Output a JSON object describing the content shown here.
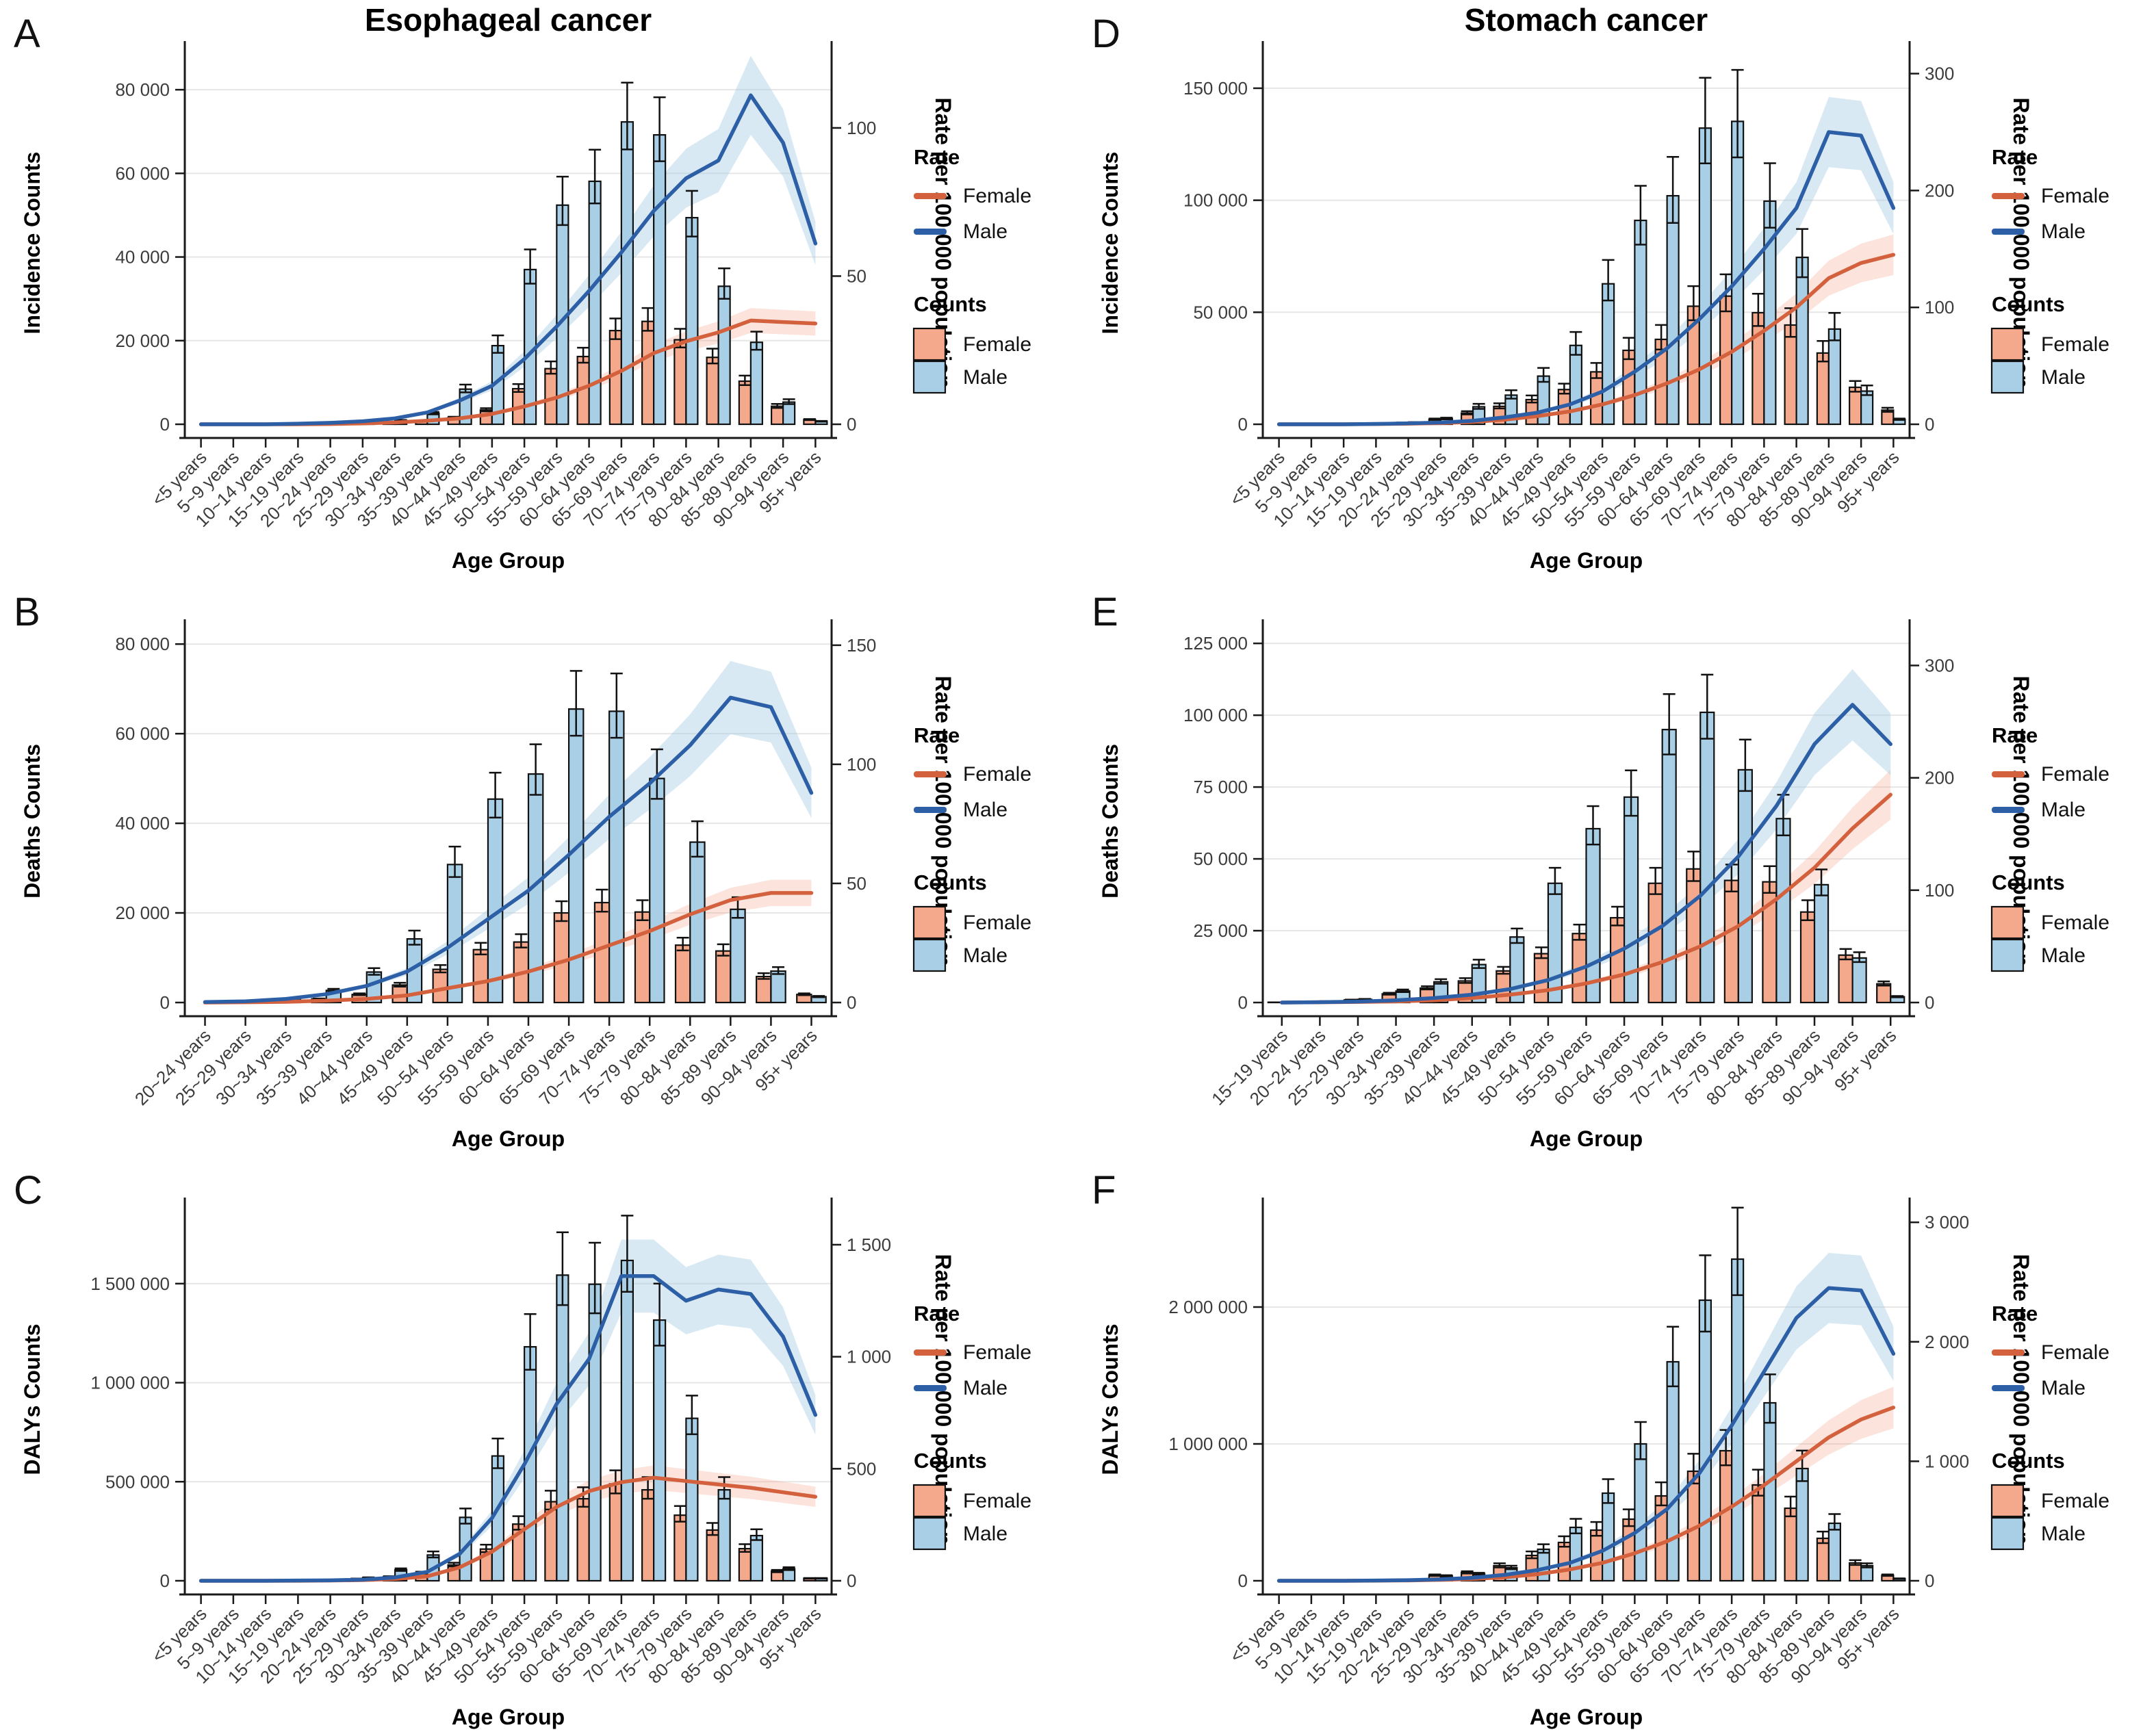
{
  "chart_data": {
    "type": "bar+line",
    "column_titles": [
      "Esophageal cancer",
      "Stomach cancer"
    ],
    "x_axis_title": "Age Group",
    "right_axis_title": "Rate per 100,000 population",
    "legend": {
      "rate_title": "Rate",
      "counts_title": "Counts",
      "female": "Female",
      "male": "Male"
    },
    "colors": {
      "female_bar": "#F5A98C",
      "male_bar": "#A9CFE6",
      "female_line": "#D4613E",
      "male_line": "#2D5FA6",
      "female_ribbon": "rgba(244,166,140,0.30)",
      "male_ribbon": "rgba(168,206,228,0.45)",
      "bar_stroke": "#111111",
      "grid": "#E6E6E6",
      "axis": "#1a1a1a"
    },
    "panels": [
      {
        "id": "A",
        "col": 0,
        "row": 0,
        "ylabel": "Incidence Counts",
        "categories": [
          "<5 years",
          "5~9 years",
          "10~14 years",
          "15~19 years",
          "20~24 years",
          "25~29 years",
          "30~34 years",
          "35~39 years",
          "40~44 years",
          "45~49 years",
          "50~54 years",
          "55~59 years",
          "60~64 years",
          "65~69 years",
          "70~74 years",
          "75~79 years",
          "80~84 years",
          "85~89 years",
          "90~94 years",
          "95+ years"
        ],
        "left_ticks": [
          {
            "v": 0,
            "l": "0"
          },
          {
            "v": 20000,
            "l": "20 000"
          },
          {
            "v": 40000,
            "l": "40 000"
          },
          {
            "v": 60000,
            "l": "60 000"
          },
          {
            "v": 80000,
            "l": "80 000"
          }
        ],
        "left_max": 90000,
        "right_ticks": [
          {
            "v": 0,
            "l": "0"
          },
          {
            "v": 50,
            "l": "50"
          },
          {
            "v": 100,
            "l": "100"
          }
        ],
        "right_max": 127,
        "counts_female": [
          0,
          0,
          0,
          0,
          50,
          150,
          300,
          700,
          1600,
          3400,
          8500,
          13300,
          16200,
          22400,
          24600,
          20200,
          16000,
          10300,
          4300,
          1100
        ],
        "counts_male": [
          0,
          0,
          0,
          50,
          150,
          300,
          900,
          2600,
          8400,
          18800,
          37000,
          52400,
          58100,
          72300,
          69200,
          49400,
          33000,
          19600,
          5300,
          700
        ],
        "rate_female": [
          0,
          0,
          0,
          0,
          0.1,
          0.3,
          0.6,
          1.2,
          2,
          3.5,
          6,
          9,
          13,
          18,
          24,
          28,
          31,
          35,
          34.5,
          34
        ],
        "rate_male": [
          0,
          0,
          0,
          0.2,
          0.5,
          1,
          2,
          4,
          8,
          13,
          22,
          33,
          45,
          58,
          72,
          83,
          89,
          111,
          95,
          61
        ],
        "ci_counts": 0.13,
        "ci_rate": 0.12
      },
      {
        "id": "B",
        "col": 0,
        "row": 1,
        "ylabel": "Deaths Counts",
        "categories": [
          "20~24 years",
          "25~29 years",
          "30~34 years",
          "35~39 years",
          "40~44 years",
          "45~49 years",
          "50~54 years",
          "55~59 years",
          "60~64 years",
          "65~69 years",
          "70~74 years",
          "75~79 years",
          "80~84 years",
          "85~89 years",
          "90~94 years",
          "95+ years"
        ],
        "left_ticks": [
          {
            "v": 0,
            "l": "0"
          },
          {
            "v": 20000,
            "l": "20 000"
          },
          {
            "v": 40000,
            "l": "40 000"
          },
          {
            "v": 60000,
            "l": "60 000"
          },
          {
            "v": 80000,
            "l": "80 000"
          }
        ],
        "left_max": 84000,
        "right_ticks": [
          {
            "v": 0,
            "l": "0"
          },
          {
            "v": 50,
            "l": "50"
          },
          {
            "v": 100,
            "l": "100"
          },
          {
            "v": 150,
            "l": "150"
          }
        ],
        "right_max": 158,
        "counts_female": [
          0,
          100,
          300,
          800,
          1800,
          3900,
          7400,
          11800,
          13500,
          20000,
          22300,
          20200,
          12800,
          11500,
          5800,
          1800
        ],
        "counts_male": [
          100,
          200,
          900,
          2700,
          6800,
          14200,
          30800,
          45400,
          51000,
          65500,
          65000,
          50000,
          35800,
          20800,
          7000,
          1300
        ],
        "rate_female": [
          0,
          0.1,
          0.3,
          0.8,
          1.5,
          3,
          6,
          9,
          13,
          18,
          24,
          30,
          37,
          43,
          46,
          46
        ],
        "rate_male": [
          0.2,
          0.5,
          1.5,
          3.5,
          7,
          13,
          23,
          35,
          47,
          62,
          78,
          92,
          108,
          128,
          124,
          88
        ],
        "ci_counts": 0.13,
        "ci_rate": 0.12
      },
      {
        "id": "C",
        "col": 0,
        "row": 2,
        "ylabel": "DALYs Counts",
        "categories": [
          "<5 years",
          "5~9 years",
          "10~14 years",
          "15~19 years",
          "20~24 years",
          "25~29 years",
          "30~34 years",
          "35~39 years",
          "40~44 years",
          "45~49 years",
          "50~54 years",
          "55~59 years",
          "60~64 years",
          "65~69 years",
          "70~74 years",
          "75~79 years",
          "80~84 years",
          "85~89 years",
          "90~94 years",
          "95+ years"
        ],
        "left_ticks": [
          {
            "v": 0,
            "l": "0"
          },
          {
            "v": 500000,
            "l": "500 000"
          },
          {
            "v": 1000000,
            "l": "1 000 000"
          },
          {
            "v": 1500000,
            "l": "1 500 000"
          }
        ],
        "left_max": 1900000,
        "right_ticks": [
          {
            "v": 0,
            "l": "0"
          },
          {
            "v": 500,
            "l": "500"
          },
          {
            "v": 1000,
            "l": "1 000"
          },
          {
            "v": 1500,
            "l": "1 500"
          }
        ],
        "right_max": 1680,
        "counts_female": [
          0,
          0,
          0,
          0,
          2000,
          10000,
          20000,
          40000,
          80000,
          160000,
          286000,
          399000,
          414000,
          489000,
          459000,
          331000,
          256000,
          162000,
          48000,
          12000
        ],
        "counts_male": [
          0,
          0,
          0,
          1000,
          2000,
          15000,
          55000,
          130000,
          320000,
          630000,
          1181000,
          1543000,
          1497000,
          1617000,
          1316000,
          820000,
          459000,
          228000,
          60000,
          12000
        ],
        "rate_female": [
          0,
          0,
          0,
          0,
          1,
          3,
          8,
          20,
          60,
          130,
          230,
          330,
          400,
          440,
          460,
          445,
          430,
          415,
          395,
          375
        ],
        "rate_male": [
          0,
          0,
          0,
          1,
          2,
          5,
          15,
          40,
          120,
          280,
          520,
          790,
          990,
          1360,
          1360,
          1250,
          1300,
          1280,
          1090,
          740
        ],
        "ci_counts": 0.14,
        "ci_rate": 0.12
      },
      {
        "id": "D",
        "col": 1,
        "row": 0,
        "ylabel": "Incidence Counts",
        "categories": [
          "<5 years",
          "5~9 years",
          "10~14 years",
          "15~19 years",
          "20~24 years",
          "25~29 years",
          "30~34 years",
          "35~39 years",
          "40~44 years",
          "45~49 years",
          "50~54 years",
          "55~59 years",
          "60~64 years",
          "65~69 years",
          "70~74 years",
          "75~79 years",
          "80~84 years",
          "85~89 years",
          "90~94 years",
          "95+ years"
        ],
        "left_ticks": [
          {
            "v": 0,
            "l": "0"
          },
          {
            "v": 50000,
            "l": "50 000"
          },
          {
            "v": 100000,
            "l": "100 000"
          },
          {
            "v": 150000,
            "l": "150 000"
          }
        ],
        "left_max": 168000,
        "right_ticks": [
          {
            "v": 0,
            "l": "0"
          },
          {
            "v": 100,
            "l": "100"
          },
          {
            "v": 200,
            "l": "200"
          },
          {
            "v": 300,
            "l": "300"
          }
        ],
        "right_max": 322,
        "counts_female": [
          0,
          0,
          0,
          100,
          700,
          2200,
          5000,
          8000,
          11000,
          15500,
          23400,
          33000,
          37900,
          52700,
          57200,
          49800,
          44300,
          31800,
          16500,
          6300
        ],
        "counts_male": [
          0,
          0,
          0,
          100,
          800,
          2500,
          7800,
          13000,
          21500,
          35200,
          62700,
          91000,
          102000,
          132200,
          135200,
          99600,
          74500,
          42500,
          14800,
          2200
        ],
        "rate_female": [
          0,
          0,
          0,
          0.2,
          0.5,
          1,
          2,
          4,
          7,
          11,
          17,
          25,
          35,
          47,
          62,
          80,
          100,
          125,
          138,
          145
        ],
        "rate_male": [
          0,
          0,
          0,
          0.3,
          0.8,
          1.5,
          3,
          6,
          10,
          17,
          28,
          45,
          65,
          90,
          118,
          150,
          185,
          250,
          247,
          185
        ],
        "ci_counts": 0.17,
        "ci_rate": 0.12
      },
      {
        "id": "E",
        "col": 1,
        "row": 1,
        "ylabel": "Deaths Counts",
        "categories": [
          "15~19 years",
          "20~24 years",
          "25~29 years",
          "30~34 years",
          "35~39 years",
          "40~44 years",
          "45~49 years",
          "50~54 years",
          "55~59 years",
          "60~64 years",
          "65~69 years",
          "70~74 years",
          "75~79 years",
          "80~84 years",
          "85~89 years",
          "90~94 years",
          "95+ years"
        ],
        "left_ticks": [
          {
            "v": 0,
            "l": "0"
          },
          {
            "v": 25000,
            "l": "25 000"
          },
          {
            "v": 50000,
            "l": "50 000"
          },
          {
            "v": 75000,
            "l": "75 000"
          },
          {
            "v": 100000,
            "l": "100 000"
          },
          {
            "v": 125000,
            "l": "125 000"
          }
        ],
        "left_max": 131000,
        "right_ticks": [
          {
            "v": 0,
            "l": "0"
          },
          {
            "v": 100,
            "l": "100"
          },
          {
            "v": 200,
            "l": "200"
          },
          {
            "v": 300,
            "l": "300"
          }
        ],
        "right_max": 335,
        "counts_female": [
          100,
          400,
          900,
          3000,
          5000,
          7500,
          11000,
          17000,
          24000,
          29500,
          41500,
          46500,
          42500,
          42000,
          31500,
          16500,
          6500
        ],
        "counts_male": [
          100,
          500,
          1100,
          4000,
          7200,
          13200,
          22800,
          41500,
          60500,
          71500,
          95000,
          101000,
          81000,
          64000,
          41000,
          15500,
          2000
        ],
        "rate_female": [
          0,
          0.2,
          0.5,
          1,
          2,
          4,
          7,
          11,
          17,
          25,
          36,
          50,
          68,
          92,
          120,
          155,
          185
        ],
        "rate_male": [
          0,
          0.3,
          0.8,
          2,
          4,
          7,
          12,
          20,
          32,
          48,
          68,
          95,
          130,
          175,
          230,
          265,
          230
        ],
        "ci_counts": 0.13,
        "ci_rate": 0.12
      },
      {
        "id": "F",
        "col": 1,
        "row": 2,
        "ylabel": "DALYs Counts",
        "categories": [
          "<5 years",
          "5~9 years",
          "10~14 years",
          "15~19 years",
          "20~24 years",
          "25~29 years",
          "30~34 years",
          "35~39 years",
          "40~44 years",
          "45~49 years",
          "50~54 years",
          "55~59 years",
          "60~64 years",
          "65~69 years",
          "70~74 years",
          "75~79 years",
          "80~84 years",
          "85~89 years",
          "90~94 years",
          "95+ years"
        ],
        "left_ticks": [
          {
            "v": 0,
            "l": "0"
          },
          {
            "v": 1000000,
            "l": "1 000 000"
          },
          {
            "v": 2000000,
            "l": "2 000 000"
          }
        ],
        "left_max": 2750000,
        "right_ticks": [
          {
            "v": 0,
            "l": "0"
          },
          {
            "v": 1000,
            "l": "1 000"
          },
          {
            "v": 2000,
            "l": "2 000"
          },
          {
            "v": 3000,
            "l": "3 000"
          }
        ],
        "right_max": 3150,
        "counts_female": [
          0,
          0,
          0,
          1000,
          8000,
          40000,
          60000,
          110000,
          185000,
          280000,
          370000,
          450000,
          620000,
          800000,
          950000,
          700000,
          530000,
          310000,
          130000,
          40000
        ],
        "counts_male": [
          0,
          0,
          0,
          1000,
          6000,
          35000,
          50000,
          95000,
          230000,
          390000,
          640000,
          1000000,
          1600000,
          2050000,
          2350000,
          1300000,
          820000,
          420000,
          110000,
          15000
        ],
        "rate_female": [
          0,
          0,
          0,
          1,
          3,
          8,
          15,
          30,
          55,
          95,
          150,
          230,
          330,
          460,
          620,
          800,
          1000,
          1200,
          1350,
          1450
        ],
        "rate_male": [
          0,
          0,
          0,
          2,
          5,
          12,
          25,
          50,
          90,
          150,
          250,
          400,
          600,
          900,
          1300,
          1750,
          2200,
          2450,
          2430,
          1900
        ],
        "ci_counts": 0.16,
        "ci_rate": 0.12
      }
    ]
  }
}
